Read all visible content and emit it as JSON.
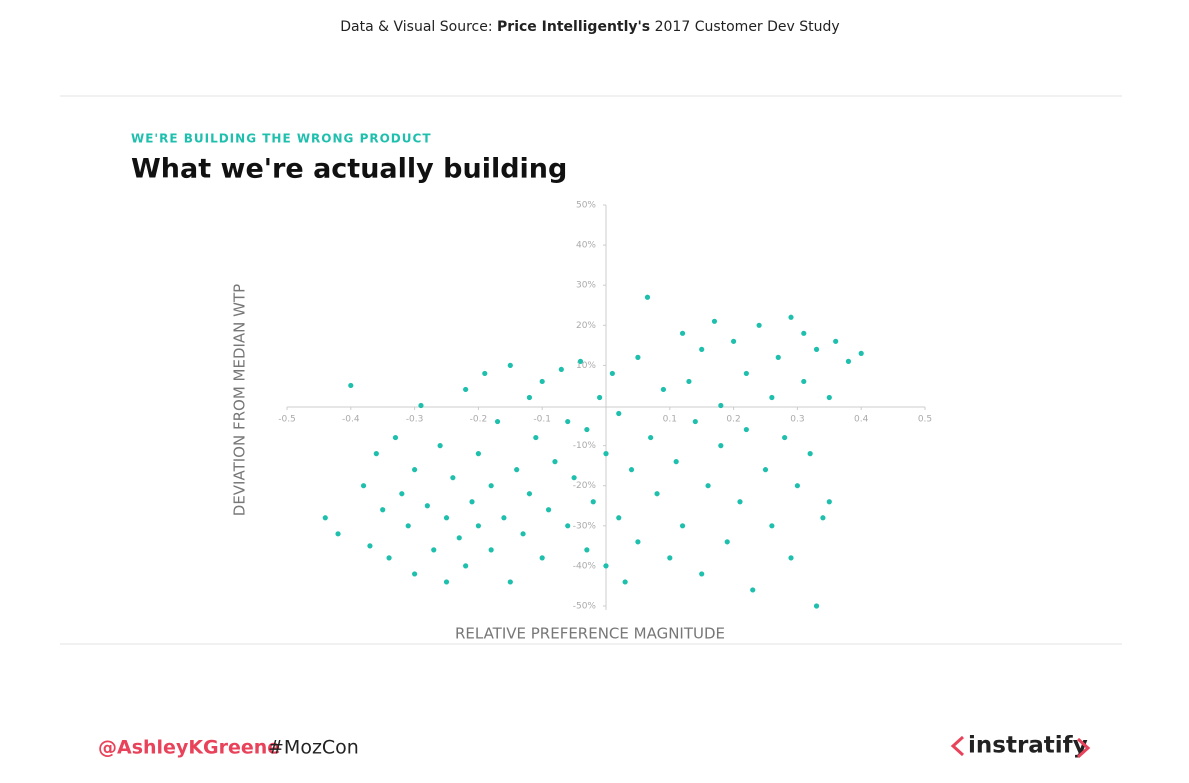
{
  "source": {
    "prefix": "Data & Visual Source:",
    "name": "Price Intelligently's",
    "suffix": "2017 Customer Dev Study"
  },
  "footer": {
    "handle": "@AshleyKGreene",
    "hashtag": "#MozCon",
    "logo": "instratify"
  },
  "chart_data": {
    "type": "scatter",
    "kicker": "WE'RE BUILDING THE WRONG PRODUCT",
    "title": "What we're actually building",
    "x_label": "RELATIVE PREFERENCE MAGNITUDE",
    "y_label": "DEVIATION FROM MEDIAN WTP",
    "xlim": [
      -0.5,
      0.5
    ],
    "xticks": [
      -0.5,
      -0.4,
      -0.3,
      -0.2,
      -0.1,
      0.1,
      0.2,
      0.3,
      0.4,
      0.5
    ],
    "ylim": [
      -50,
      50
    ],
    "yticks": [
      {
        "value": 50,
        "label": "50%"
      },
      {
        "value": 40,
        "label": "40%"
      },
      {
        "value": 30,
        "label": "30%"
      },
      {
        "value": 20,
        "label": "20%"
      },
      {
        "value": 10,
        "label": "10%"
      },
      {
        "value": -10,
        "label": "-10%"
      },
      {
        "value": -20,
        "label": "-20%"
      },
      {
        "value": -30,
        "label": "-30%"
      },
      {
        "value": -40,
        "label": "-40%"
      },
      {
        "value": -50,
        "label": "-50%"
      }
    ],
    "color": "#1fbfae",
    "x": [
      -0.44,
      -0.42,
      -0.4,
      -0.38,
      -0.37,
      -0.36,
      -0.35,
      -0.34,
      -0.33,
      -0.32,
      -0.31,
      -0.3,
      -0.3,
      -0.29,
      -0.28,
      -0.27,
      -0.26,
      -0.25,
      -0.25,
      -0.24,
      -0.23,
      -0.22,
      -0.22,
      -0.21,
      -0.2,
      -0.2,
      -0.19,
      -0.18,
      -0.18,
      -0.17,
      -0.16,
      -0.15,
      -0.15,
      -0.14,
      -0.13,
      -0.12,
      -0.12,
      -0.11,
      -0.1,
      -0.1,
      -0.09,
      -0.08,
      -0.07,
      -0.06,
      -0.06,
      -0.05,
      -0.04,
      -0.03,
      -0.03,
      -0.02,
      -0.01,
      0.0,
      0.0,
      0.01,
      0.02,
      0.02,
      0.03,
      0.04,
      0.05,
      0.05,
      0.065,
      0.07,
      0.08,
      0.09,
      0.1,
      0.11,
      0.12,
      0.12,
      0.13,
      0.14,
      0.15,
      0.15,
      0.16,
      0.17,
      0.18,
      0.18,
      0.19,
      0.2,
      0.21,
      0.22,
      0.22,
      0.23,
      0.24,
      0.25,
      0.26,
      0.26,
      0.27,
      0.28,
      0.29,
      0.29,
      0.3,
      0.31,
      0.31,
      0.32,
      0.33,
      0.33,
      0.34,
      0.35,
      0.36,
      0.38,
      0.4,
      0.35
    ],
    "values": [
      -28,
      -32,
      5,
      -20,
      -35,
      -12,
      -26,
      -38,
      -8,
      -22,
      -30,
      -42,
      -16,
      0,
      -25,
      -36,
      -10,
      -44,
      -28,
      -18,
      -33,
      4,
      -40,
      -24,
      -12,
      -30,
      8,
      -36,
      -20,
      -4,
      -28,
      10,
      -44,
      -16,
      -32,
      2,
      -22,
      -8,
      -38,
      6,
      -26,
      -14,
      9,
      -4,
      -30,
      -18,
      11,
      -36,
      -6,
      -24,
      2,
      -40,
      -12,
      8,
      -28,
      -2,
      -44,
      -16,
      12,
      -34,
      27,
      -8,
      -22,
      4,
      -38,
      -14,
      18,
      -30,
      6,
      -4,
      -42,
      14,
      -20,
      21,
      -10,
      0,
      -34,
      16,
      -24,
      8,
      -6,
      -46,
      20,
      -16,
      2,
      -30,
      12,
      -8,
      22,
      -38,
      -20,
      6,
      18,
      -12,
      -50,
      14,
      -28,
      2,
      16,
      11,
      13,
      -24
    ]
  }
}
